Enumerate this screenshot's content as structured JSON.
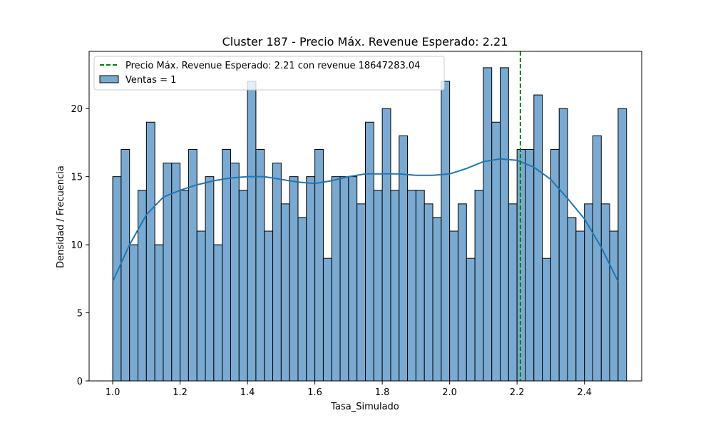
{
  "chart_data": {
    "type": "bar",
    "title": "Cluster 187 - Precio Máx. Revenue Esperado: 2.21",
    "xlabel": "Tasa_Simulado",
    "ylabel": "Densidad / Frecuencia",
    "xlim": [
      0.93,
      2.57
    ],
    "ylim": [
      0,
      24.2
    ],
    "bin_start": 1.0,
    "bin_width": 0.025,
    "x_ticks": [
      1.0,
      1.2,
      1.4,
      1.6,
      1.8,
      2.0,
      2.2,
      2.4
    ],
    "x_tick_labels": [
      "1.0",
      "1.2",
      "1.4",
      "1.6",
      "1.8",
      "2.0",
      "2.2",
      "2.4"
    ],
    "y_ticks": [
      0,
      5,
      10,
      15,
      20
    ],
    "y_tick_labels": [
      "0",
      "5",
      "10",
      "15",
      "20"
    ],
    "series": [
      {
        "name": "Ventas = 1",
        "color": "#7aaad1",
        "values": [
          15,
          17,
          10,
          14,
          19,
          10,
          16,
          16,
          14,
          17,
          11,
          15,
          10,
          17,
          16,
          14,
          22,
          17,
          11,
          16,
          13,
          15,
          12,
          15,
          17,
          9,
          15,
          15,
          15,
          13,
          19,
          14,
          20,
          14,
          18,
          14,
          14,
          13,
          12,
          22,
          11,
          13,
          9,
          14,
          23,
          19,
          23,
          13,
          17,
          17,
          21,
          9,
          17,
          20,
          12,
          11,
          13,
          18,
          13,
          11,
          20
        ]
      }
    ],
    "kde": {
      "name": "kde",
      "color": "#1f77b4",
      "x": [
        1.0,
        1.05,
        1.1,
        1.15,
        1.2,
        1.25,
        1.3,
        1.35,
        1.4,
        1.45,
        1.5,
        1.55,
        1.6,
        1.65,
        1.7,
        1.75,
        1.8,
        1.85,
        1.9,
        1.95,
        2.0,
        2.05,
        2.1,
        2.15,
        2.2,
        2.25,
        2.3,
        2.35,
        2.4,
        2.45,
        2.5
      ],
      "y": [
        7.3,
        10.0,
        12.2,
        13.5,
        14.0,
        14.4,
        14.7,
        14.9,
        15.0,
        15.0,
        14.8,
        14.6,
        14.5,
        14.7,
        15.0,
        15.2,
        15.2,
        15.2,
        15.1,
        15.1,
        15.2,
        15.6,
        16.1,
        16.3,
        16.2,
        15.7,
        14.8,
        13.4,
        11.9,
        9.8,
        7.3
      ]
    },
    "vline": {
      "x": 2.21,
      "color": "#008000",
      "label": "Precio Máx. Revenue Esperado: 2.21 con revenue 18647283.04"
    },
    "legend_position": "top-left"
  }
}
